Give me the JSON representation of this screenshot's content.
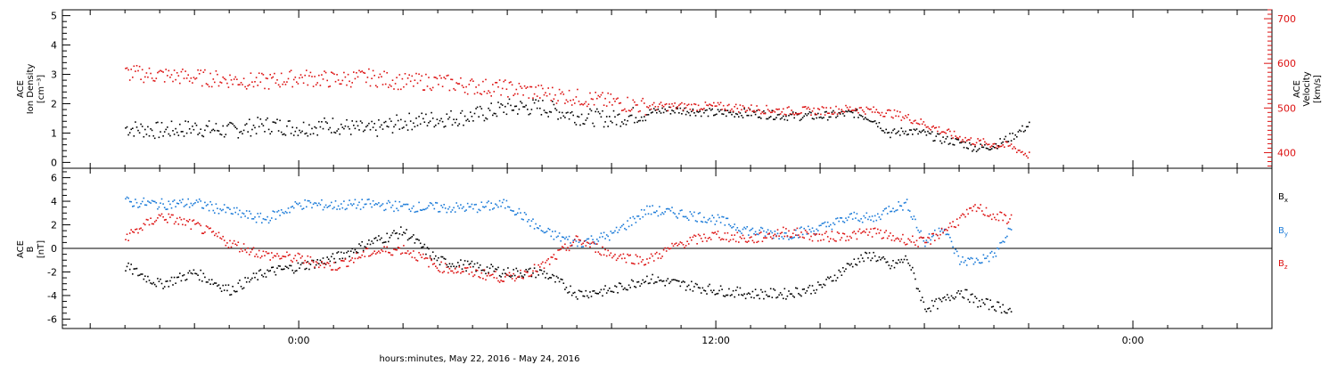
{
  "chart_data": [
    {
      "type": "scatter",
      "panel": "top",
      "ylabel_left": [
        "ACE",
        "Ion Density",
        "[cm⁻³]"
      ],
      "ylabel_right": [
        "ACE",
        "Velocity",
        "[km/s]"
      ],
      "ylim_left": [
        -0.2,
        5.2
      ],
      "ylim_right": [
        365,
        720
      ],
      "yticks_left": [
        0,
        1,
        2,
        3,
        4,
        5
      ],
      "yticks_right": [
        400,
        500,
        600,
        700
      ],
      "series": [
        {
          "axis": "left",
          "color": "#000000",
          "x": [
            -5,
            -4,
            -3,
            -2,
            -1,
            0,
            1,
            2,
            3,
            4,
            5,
            6,
            7,
            8,
            9,
            10,
            10.5,
            11,
            12,
            13,
            14,
            15,
            16,
            16.5,
            17,
            17.5,
            18,
            18.5,
            19,
            19.5,
            20,
            20.5,
            21
          ],
          "y": [
            1.2,
            1.1,
            1.2,
            1.1,
            1.3,
            1.2,
            1.3,
            1.1,
            1.4,
            1.5,
            1.6,
            1.9,
            1.9,
            1.6,
            1.5,
            1.7,
            1.8,
            1.8,
            1.7,
            1.7,
            1.6,
            1.6,
            1.7,
            1.5,
            1.0,
            1.1,
            1.0,
            0.8,
            0.7,
            0.5,
            0.6,
            0.9,
            1.3
          ]
        },
        {
          "axis": "right",
          "color": "#dd1111",
          "x": [
            -5,
            -4,
            -3,
            -2,
            -1,
            0,
            1,
            2,
            3,
            4,
            5,
            6,
            7,
            8,
            9,
            10,
            10.5,
            11,
            12,
            13,
            14,
            15,
            16,
            16.5,
            17,
            17.5,
            18,
            18.5,
            19,
            19.5,
            20,
            20.5,
            21
          ],
          "y": [
            580,
            575,
            570,
            565,
            560,
            570,
            565,
            570,
            560,
            560,
            550,
            545,
            535,
            525,
            515,
            505,
            505,
            505,
            505,
            500,
            495,
            495,
            500,
            495,
            490,
            480,
            465,
            450,
            435,
            425,
            420,
            415,
            395
          ]
        }
      ]
    },
    {
      "type": "scatter",
      "panel": "bottom",
      "ylabel_left": [
        "ACE",
        "B",
        "[nT]"
      ],
      "ylim": [
        -6.8,
        6.8
      ],
      "yticks": [
        -6,
        -4,
        -2,
        0,
        2,
        4,
        6
      ],
      "zero_line": true,
      "legend_position": "right",
      "series": [
        {
          "name": "Bx",
          "legend_main": "B",
          "legend_sub": "x",
          "color": "#000000",
          "x": [
            -5,
            -4,
            -3,
            -2,
            -1,
            0,
            1,
            2,
            3,
            4,
            5,
            6,
            7,
            8,
            9,
            10,
            11,
            12,
            13,
            14,
            15,
            16,
            16.5,
            17,
            17.5,
            18,
            18.5,
            19,
            19.5,
            20,
            20.5
          ],
          "y": [
            -1.5,
            -3.0,
            -2.0,
            -3.5,
            -2.0,
            -1.5,
            -0.8,
            0.5,
            1.5,
            -1.0,
            -1.5,
            -2.0,
            -2.0,
            -3.8,
            -3.5,
            -2.5,
            -3.0,
            -3.5,
            -3.8,
            -3.8,
            -3.2,
            -1.0,
            -0.5,
            -1.5,
            -0.8,
            -5.0,
            -4.5,
            -3.5,
            -4.5,
            -4.8,
            -5.2
          ]
        },
        {
          "name": "By",
          "legend_main": "B",
          "legend_sub": "y",
          "color": "#1a7ad8",
          "x": [
            -5,
            -4,
            -3,
            -2,
            -1,
            0,
            1,
            2,
            3,
            4,
            5,
            6,
            7,
            8,
            9,
            10,
            11,
            12,
            13,
            14,
            15,
            16,
            16.5,
            17,
            17.5,
            18,
            18.5,
            19,
            19.5,
            20,
            20.5
          ],
          "y": [
            4.0,
            3.8,
            3.9,
            3.2,
            2.5,
            3.8,
            3.7,
            3.8,
            3.6,
            3.5,
            3.5,
            3.8,
            1.5,
            0.5,
            1.2,
            3.3,
            3.0,
            2.5,
            1.5,
            1.2,
            1.8,
            2.8,
            2.5,
            3.5,
            3.8,
            0.5,
            2.0,
            -1.0,
            -1.0,
            -0.5,
            1.8
          ]
        },
        {
          "name": "Bz",
          "legend_main": "B",
          "legend_sub": "z",
          "color": "#dd1111",
          "x": [
            -5,
            -4,
            -3,
            -2,
            -1,
            0,
            1,
            2,
            3,
            4,
            5,
            6,
            7,
            8,
            9,
            10,
            11,
            12,
            13,
            14,
            15,
            16,
            16.5,
            17,
            17.5,
            18,
            18.5,
            19,
            19.5,
            20,
            20.5
          ],
          "y": [
            1.0,
            2.8,
            2.0,
            0.5,
            -0.5,
            -0.8,
            -1.5,
            -0.3,
            0.0,
            -1.5,
            -2.0,
            -2.5,
            -1.5,
            0.8,
            -0.5,
            -1.0,
            0.5,
            1.2,
            0.8,
            1.5,
            1.0,
            1.2,
            1.5,
            1.0,
            0.8,
            0.5,
            1.5,
            2.5,
            3.5,
            2.8,
            2.5
          ]
        }
      ]
    }
  ],
  "x_axis": {
    "xlim": [
      -6.8,
      28
    ],
    "tick_labels": [
      "0:00",
      "12:00",
      "0:00"
    ],
    "tick_hours": [
      0,
      12,
      24
    ],
    "xlabel": "hours:minutes, May 22, 2016 - May 24, 2016"
  }
}
